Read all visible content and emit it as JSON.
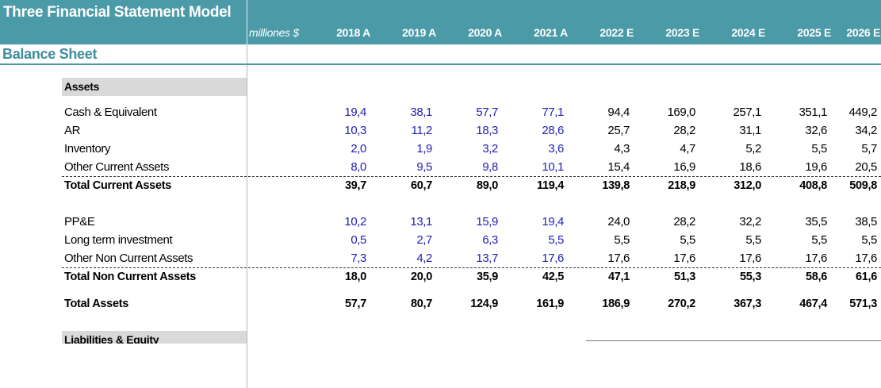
{
  "title": "Three Financial Statement Model",
  "units": "milliones $",
  "years": [
    "2018 A",
    "2019 A",
    "2020 A",
    "2021 A",
    "2022 E",
    "2023 E",
    "2024 E",
    "2025 E",
    "2026 E"
  ],
  "section": "Balance Sheet",
  "colors": {
    "header": "#4a9aa8",
    "historical": "#1f1fb5",
    "estimate": "#000000",
    "group_header": "#d9d9d9"
  },
  "assets_header": "Assets",
  "rows": [
    {
      "label": "Cash & Equivalent",
      "values": [
        "19,4",
        "38,1",
        "57,7",
        "77,1",
        "94,4",
        "169,0",
        "257,1",
        "351,1",
        "449,2"
      ]
    },
    {
      "label": "AR",
      "values": [
        "10,3",
        "11,2",
        "18,3",
        "28,6",
        "25,7",
        "28,2",
        "31,1",
        "32,6",
        "34,2"
      ]
    },
    {
      "label": "Inventory",
      "values": [
        "2,0",
        "1,9",
        "3,2",
        "3,6",
        "4,3",
        "4,7",
        "5,2",
        "5,5",
        "5,7"
      ]
    },
    {
      "label": "Other Current Assets",
      "values": [
        "8,0",
        "9,5",
        "9,8",
        "10,1",
        "15,4",
        "16,9",
        "18,6",
        "19,6",
        "20,5"
      ]
    },
    {
      "label": "Total Current Assets",
      "values": [
        "39,7",
        "60,7",
        "89,0",
        "119,4",
        "139,8",
        "218,9",
        "312,0",
        "408,8",
        "509,8"
      ]
    },
    {
      "label": "PP&E",
      "values": [
        "10,2",
        "13,1",
        "15,9",
        "19,4",
        "24,0",
        "28,2",
        "32,2",
        "35,5",
        "38,5"
      ]
    },
    {
      "label": "Long term investment",
      "values": [
        "0,5",
        "2,7",
        "6,3",
        "5,5",
        "5,5",
        "5,5",
        "5,5",
        "5,5",
        "5,5"
      ]
    },
    {
      "label": "Other Non Current Assets",
      "values": [
        "7,3",
        "4,2",
        "13,7",
        "17,6",
        "17,6",
        "17,6",
        "17,6",
        "17,6",
        "17,6"
      ]
    },
    {
      "label": "Total Non Current Assets",
      "values": [
        "18,0",
        "20,0",
        "35,9",
        "42,5",
        "47,1",
        "51,3",
        "55,3",
        "58,6",
        "61,6"
      ]
    },
    {
      "label": "Total Assets",
      "values": [
        "57,7",
        "80,7",
        "124,9",
        "161,9",
        "186,9",
        "270,2",
        "367,3",
        "467,4",
        "571,3"
      ]
    }
  ],
  "liabilities_header": "Liabilities & Equity"
}
